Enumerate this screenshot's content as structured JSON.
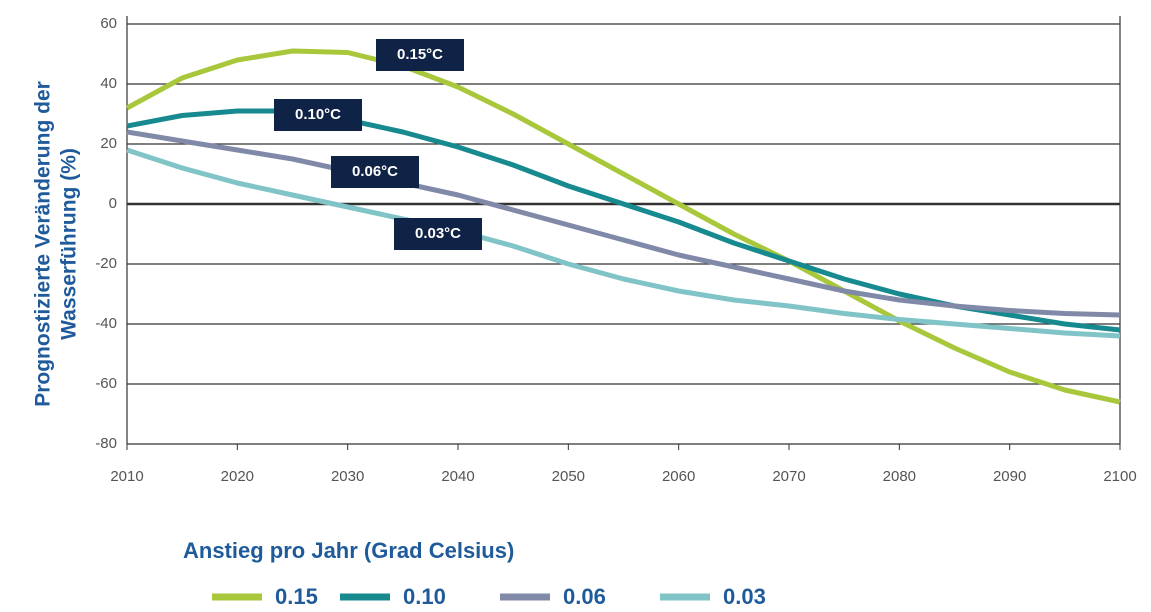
{
  "chart_data": {
    "type": "line",
    "y_label": [
      "Prognostizierte Veränderung der",
      "Wasserführung (%)"
    ],
    "legend_title": "Anstieg pro Jahr (Grad Celsius)",
    "x": [
      2010,
      2015,
      2020,
      2025,
      2030,
      2035,
      2040,
      2045,
      2050,
      2055,
      2060,
      2065,
      2070,
      2075,
      2080,
      2085,
      2090,
      2095,
      2100
    ],
    "xlim": [
      2010,
      2100
    ],
    "xticks": [
      2010,
      2020,
      2030,
      2040,
      2050,
      2060,
      2070,
      2080,
      2090,
      2100
    ],
    "ylim": [
      -80,
      60
    ],
    "yticks": [
      -80,
      -60,
      -40,
      -20,
      0,
      20,
      40,
      60
    ],
    "grid": true,
    "series": [
      {
        "name": "0.15",
        "annotation": "0.15°C",
        "color": "#a9c73a",
        "values": [
          32,
          42,
          48,
          51,
          50.5,
          46,
          39,
          30,
          20,
          10,
          0,
          -10,
          -19,
          -29,
          -39,
          -48,
          -56,
          -62,
          -66
        ]
      },
      {
        "name": "0.10",
        "annotation": "0.10°C",
        "color": "#178a90",
        "values": [
          26,
          29.5,
          31,
          31,
          28,
          24,
          19,
          13,
          6,
          0,
          -6,
          -13,
          -19,
          -25,
          -30,
          -34,
          -37,
          -40,
          -42
        ]
      },
      {
        "name": "0.06",
        "annotation": "0.06°C",
        "color": "#8189a8",
        "values": [
          24,
          21,
          18,
          15,
          11,
          7,
          3,
          -2,
          -7,
          -12,
          -17,
          -21,
          -25,
          -29,
          -32,
          -34,
          -35.5,
          -36.5,
          -37
        ]
      },
      {
        "name": "0.03",
        "annotation": "0.03°C",
        "color": "#80c4c8",
        "values": [
          18,
          12,
          7,
          3,
          -1,
          -5,
          -9,
          -14,
          -20,
          -25,
          -29,
          -32,
          -34,
          -36.5,
          -38.5,
          -40,
          -41.5,
          -43,
          -44
        ]
      }
    ]
  }
}
